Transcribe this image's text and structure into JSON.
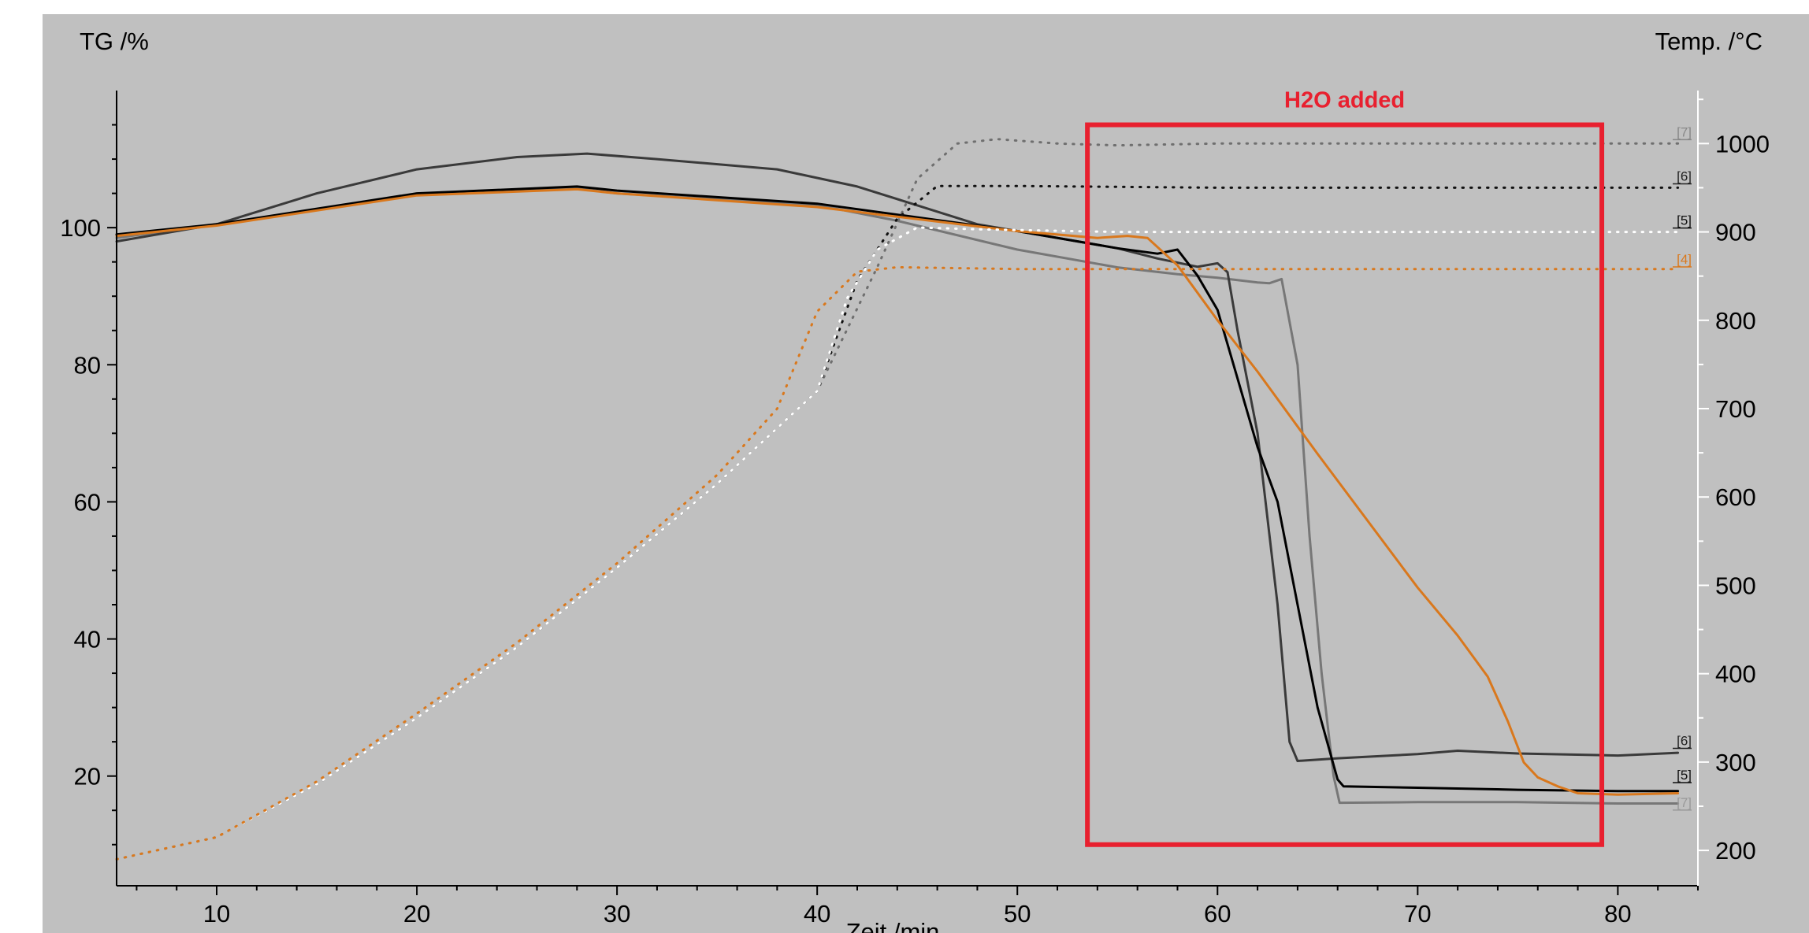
{
  "chart_data": {
    "type": "line",
    "title": "",
    "xlabel": "Zeit /min",
    "ylabel_left": "TG /%",
    "ylabel_right": "Temp. /°C",
    "xlim": [
      5,
      84
    ],
    "ylim_left": [
      4,
      120
    ],
    "ylim_right": [
      160,
      1060
    ],
    "x_ticks": [
      10,
      20,
      30,
      40,
      50,
      60,
      70,
      80
    ],
    "y_left_ticks": [
      20,
      40,
      60,
      80,
      100
    ],
    "y_right_ticks": [
      200,
      300,
      400,
      500,
      600,
      700,
      800,
      900,
      1000
    ],
    "grid": false,
    "background": "#c0c0c0",
    "annotation": {
      "label": "H2O added",
      "x_range": [
        53.5,
        79.2
      ],
      "y_range": [
        10,
        115
      ],
      "color": "#e8202f"
    },
    "series": [
      {
        "name": "[7]",
        "axis": "left",
        "style": "solid",
        "color": "#777777",
        "x": [
          5,
          10,
          20,
          28,
          30,
          40,
          44,
          50,
          55,
          58,
          60,
          62,
          62.6,
          63.2,
          64,
          64.6,
          65.2,
          65.8,
          66.1,
          70,
          75,
          80,
          83
        ],
        "y": [
          98.5,
          100.5,
          104.8,
          105.7,
          105,
          103.3,
          101,
          96.8,
          94.2,
          93.2,
          92.7,
          92,
          91.9,
          92.5,
          80,
          55,
          35,
          20,
          16.1,
          16.2,
          16.2,
          16,
          16
        ]
      },
      {
        "name": "[6]",
        "axis": "left",
        "style": "solid",
        "color": "#3a3a3a",
        "x": [
          5,
          10,
          15,
          20,
          25,
          28.5,
          32,
          38,
          42,
          48,
          52,
          55,
          57,
          59,
          60,
          60.5,
          61,
          62,
          63,
          63.6,
          64,
          66,
          70,
          72,
          75,
          80,
          83
        ],
        "y": [
          98,
          100.5,
          105,
          108.5,
          110.3,
          110.8,
          110,
          108.5,
          106,
          100.5,
          98.5,
          97,
          95.5,
          94.3,
          94.8,
          93.5,
          85,
          70,
          45,
          25,
          22.2,
          22.6,
          23.2,
          23.7,
          23.3,
          23,
          23.4
        ]
      },
      {
        "name": "[5]",
        "axis": "left",
        "style": "solid",
        "color": "#000000",
        "x": [
          5,
          10,
          20,
          28,
          30,
          40,
          50,
          55,
          57,
          58,
          59,
          60,
          61,
          62,
          63,
          64,
          65,
          66,
          66.3,
          70,
          75,
          80,
          83
        ],
        "y": [
          99,
          100.5,
          105,
          106,
          105.4,
          103.5,
          99.5,
          97,
          96.2,
          96.8,
          93,
          88,
          78,
          68,
          60,
          45,
          30,
          19.5,
          18.5,
          18.3,
          18,
          17.8,
          17.8
        ]
      },
      {
        "name": "[4]",
        "axis": "left",
        "style": "solid",
        "color": "#d9781d",
        "x": [
          5,
          10,
          20,
          28,
          30,
          40,
          50,
          54,
          55.5,
          56.5,
          58,
          60,
          62,
          65,
          70,
          72,
          73.5,
          74.5,
          75.3,
          76,
          77,
          78,
          80,
          83
        ],
        "y": [
          98.8,
          100.3,
          104.7,
          105.6,
          105,
          103,
          99.5,
          98.5,
          98.8,
          98.5,
          94.5,
          86.5,
          79,
          67,
          47.5,
          40.5,
          34.5,
          28,
          22,
          19.8,
          18.5,
          17.5,
          17.3,
          17.5
        ]
      },
      {
        "name": "[7]",
        "axis": "right",
        "style": "dotted",
        "color": "#6f6f6f",
        "x": [
          5,
          10,
          15,
          20,
          25,
          30,
          35,
          40,
          43,
          45,
          47,
          49,
          52,
          55,
          60,
          70,
          80,
          83
        ],
        "y": [
          190,
          215,
          275,
          350,
          430,
          520,
          615,
          720,
          860,
          960,
          1000,
          1005,
          1000,
          998,
          1000,
          1000,
          1000,
          1000
        ]
      },
      {
        "name": "[6]",
        "axis": "right",
        "style": "dotted",
        "color": "#111111",
        "x": [
          5,
          10,
          15,
          20,
          25,
          30,
          35,
          40,
          42,
          44,
          46,
          50,
          60,
          70,
          80,
          83
        ],
        "y": [
          190,
          215,
          275,
          350,
          430,
          520,
          615,
          720,
          845,
          915,
          952,
          952,
          950,
          950,
          950,
          950
        ]
      },
      {
        "name": "[5]",
        "axis": "right",
        "style": "dotted",
        "color": "#ffffff",
        "x": [
          5,
          10,
          15,
          20,
          25,
          30,
          35,
          40,
          41.5,
          43,
          45,
          48,
          55,
          60,
          70,
          80,
          83
        ],
        "y": [
          190,
          215,
          275,
          350,
          430,
          520,
          615,
          720,
          825,
          880,
          905,
          903,
          900,
          900,
          900,
          900,
          900
        ]
      },
      {
        "name": "[4]",
        "axis": "right",
        "style": "dotted",
        "color": "#d9781d",
        "x": [
          5,
          10,
          15,
          20,
          25,
          30,
          35,
          38,
          40,
          42,
          44,
          50,
          60,
          70,
          80,
          83
        ],
        "y": [
          190,
          215,
          278,
          355,
          435,
          525,
          625,
          700,
          810,
          855,
          860,
          858,
          858,
          858,
          858,
          858
        ]
      }
    ],
    "end_tags": [
      {
        "label": "[7]",
        "color": "#888888",
        "axis": "right",
        "y": 1008
      },
      {
        "label": "[6]",
        "color": "#222222",
        "axis": "right",
        "y": 958
      },
      {
        "label": "[5]",
        "color": "#111111",
        "axis": "right",
        "y": 908
      },
      {
        "label": "[4]",
        "color": "#d9781d",
        "axis": "right",
        "y": 864
      },
      {
        "label": "[6]",
        "color": "#222222",
        "axis": "left",
        "y": 24.5
      },
      {
        "label": "[5]",
        "color": "#111111",
        "axis": "left",
        "y": 19.5
      },
      {
        "label": "[7]",
        "color": "#999999",
        "axis": "left",
        "y": 15.5
      }
    ]
  }
}
